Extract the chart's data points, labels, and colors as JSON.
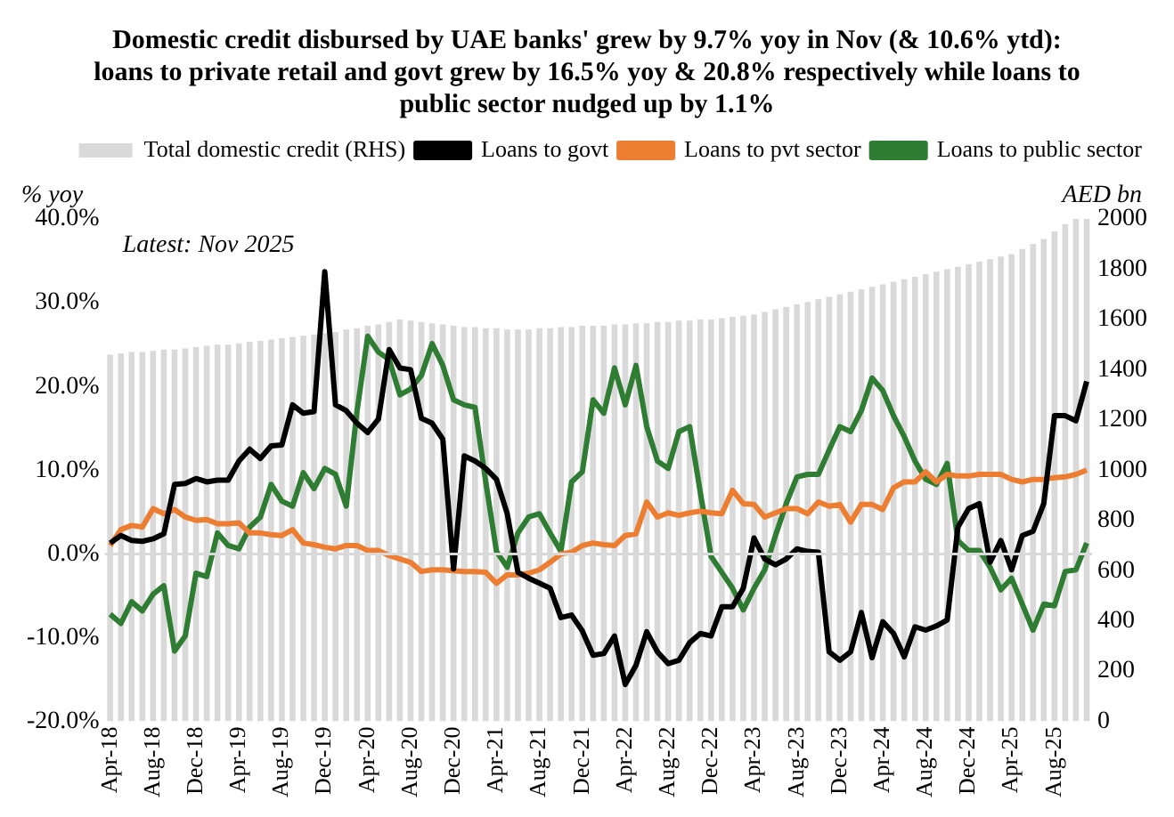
{
  "chart_data": {
    "type": "line",
    "title": "Domestic credit disbursed by UAE banks' grew by 9.7% yoy in Nov (& 10.6% ytd): loans to private retail and govt grew by 16.5% yoy & 20.8% respectively while loans to public sector nudged up by 1.1%",
    "ylabel": "% yoy",
    "y2label": "AED bn",
    "annotations": [
      "Latest: Nov 2025"
    ],
    "categories": [
      "Apr-18",
      null,
      null,
      null,
      "Aug-18",
      null,
      null,
      null,
      "Dec-18",
      null,
      null,
      null,
      "Apr-19",
      null,
      null,
      null,
      "Aug-19",
      null,
      null,
      null,
      "Dec-19",
      null,
      null,
      null,
      "Apr-20",
      null,
      null,
      null,
      "Aug-20",
      null,
      null,
      null,
      "Dec-20",
      null,
      null,
      null,
      "Apr-21",
      null,
      null,
      null,
      "Aug-21",
      null,
      null,
      null,
      "Dec-21",
      null,
      null,
      null,
      "Apr-22",
      null,
      null,
      null,
      "Aug-22",
      null,
      null,
      null,
      "Dec-22",
      null,
      null,
      null,
      "Apr-23",
      null,
      null,
      null,
      "Aug-23",
      null,
      null,
      null,
      "Dec-23",
      null,
      null,
      null,
      "Apr-24",
      null,
      null,
      null,
      "Aug-24",
      null,
      null,
      null,
      "Dec-24",
      null,
      null,
      null,
      "Apr-25",
      null,
      null,
      null,
      "Aug-25",
      null,
      null,
      null
    ],
    "series": [
      {
        "name": "Total domestic credit (RHS)",
        "type": "bar",
        "axis": "y2",
        "color": "#d9d9d9",
        "values": [
          1460,
          1465,
          1470,
          1470,
          1475,
          1480,
          1480,
          1485,
          1490,
          1495,
          1500,
          1500,
          1505,
          1510,
          1515,
          1520,
          1525,
          1530,
          1535,
          1540,
          1545,
          1550,
          1560,
          1565,
          1575,
          1580,
          1590,
          1600,
          1595,
          1590,
          1585,
          1580,
          1575,
          1570,
          1570,
          1565,
          1565,
          1560,
          1560,
          1560,
          1565,
          1565,
          1570,
          1570,
          1575,
          1575,
          1575,
          1580,
          1580,
          1585,
          1585,
          1590,
          1590,
          1595,
          1595,
          1600,
          1600,
          1605,
          1610,
          1615,
          1620,
          1630,
          1640,
          1650,
          1660,
          1670,
          1680,
          1690,
          1700,
          1710,
          1720,
          1730,
          1740,
          1750,
          1760,
          1770,
          1780,
          1790,
          1800,
          1810,
          1820,
          1830,
          1840,
          1850,
          1860,
          1880,
          1900,
          1920,
          1950,
          1980,
          2000,
          2000
        ]
      },
      {
        "name": "Loans to govt",
        "color": "#000000",
        "values": [
          1.3,
          2.2,
          1.6,
          1.5,
          1.8,
          2.4,
          8.3,
          8.4,
          9.0,
          8.6,
          8.8,
          8.8,
          11.1,
          12.5,
          11.4,
          12.9,
          13.0,
          17.8,
          16.8,
          17.0,
          33.7,
          17.8,
          17.1,
          15.6,
          14.5,
          16.1,
          24.4,
          22.2,
          22.0,
          16.2,
          15.6,
          13.7,
          -1.8,
          11.7,
          11.1,
          10.2,
          8.9,
          4.8,
          -2.2,
          -2.9,
          -3.5,
          -4.1,
          -7.6,
          -7.3,
          -9.2,
          -12.1,
          -11.9,
          -9.8,
          -15.6,
          -13.3,
          -9.3,
          -11.7,
          -13.1,
          -12.7,
          -10.6,
          -9.5,
          -9.8,
          -6.3,
          -6.3,
          -4.1,
          1.9,
          -0.6,
          -1.3,
          -0.6,
          0.6,
          0.3,
          0.2,
          -11.7,
          -12.7,
          -11.7,
          -7.0,
          -12.4,
          -8.1,
          -9.5,
          -12.3,
          -8.7,
          -9.1,
          -8.6,
          -7.9,
          3.2,
          5.4,
          6.0,
          -1.0,
          1.6,
          -1.9,
          2.2,
          2.7,
          6.0,
          16.5,
          16.5,
          15.9,
          20.6
        ]
      },
      {
        "name": "Loans to pvt sector",
        "color": "#ed7d31",
        "values": [
          1.0,
          2.9,
          3.4,
          3.2,
          5.4,
          4.8,
          5.3,
          4.4,
          4.0,
          4.1,
          3.6,
          3.6,
          3.7,
          2.5,
          2.5,
          2.3,
          2.2,
          2.9,
          1.3,
          1.1,
          0.8,
          0.6,
          1.0,
          1.0,
          0.4,
          0.4,
          -0.2,
          -0.6,
          -1.0,
          -2.1,
          -1.9,
          -1.9,
          -2.0,
          -2.1,
          -2.1,
          -2.2,
          -3.5,
          -2.5,
          -2.5,
          -2.3,
          -1.9,
          -1.0,
          0.0,
          0.2,
          1.0,
          1.3,
          1.1,
          1.0,
          2.2,
          2.4,
          6.2,
          4.4,
          4.9,
          4.6,
          4.9,
          5.1,
          4.9,
          4.8,
          7.6,
          6.0,
          5.9,
          4.4,
          4.9,
          5.4,
          5.4,
          4.8,
          6.2,
          5.7,
          5.9,
          3.8,
          5.9,
          5.9,
          5.3,
          7.9,
          8.6,
          8.6,
          9.8,
          8.6,
          9.5,
          9.3,
          9.3,
          9.5,
          9.5,
          9.5,
          8.9,
          8.6,
          8.9,
          8.9,
          9.1,
          9.2,
          9.5,
          10.0
        ]
      },
      {
        "name": "Loans to public sector",
        "color": "#2e7d32",
        "values": [
          -7.2,
          -8.3,
          -5.7,
          -6.8,
          -4.8,
          -3.8,
          -11.6,
          -9.8,
          -2.3,
          -2.7,
          2.5,
          1.0,
          0.6,
          3.2,
          4.4,
          8.3,
          6.3,
          5.7,
          9.7,
          7.8,
          10.2,
          9.5,
          5.7,
          17.0,
          26.0,
          24.1,
          23.2,
          19.0,
          19.7,
          21.3,
          25.1,
          22.5,
          18.4,
          17.8,
          17.5,
          8.6,
          0.3,
          -1.6,
          2.5,
          4.4,
          4.8,
          2.5,
          0.3,
          8.6,
          9.8,
          18.4,
          16.8,
          22.2,
          17.8,
          22.5,
          15.2,
          11.1,
          10.2,
          14.6,
          15.2,
          7.3,
          -0.3,
          -2.2,
          -4.1,
          -6.7,
          -4.1,
          -1.9,
          2.2,
          6.0,
          9.2,
          9.5,
          9.5,
          12.4,
          15.2,
          14.6,
          17.1,
          21.0,
          19.5,
          16.5,
          14.0,
          11.1,
          8.9,
          8.3,
          10.8,
          1.6,
          0.4,
          0.4,
          -1.6,
          -4.3,
          -2.9,
          -6.0,
          -9.1,
          -6.0,
          -6.2,
          -2.1,
          -1.9,
          1.3
        ]
      }
    ],
    "ylim": [
      -20,
      40
    ],
    "yticks": [
      {
        "value": -20,
        "label": "-20.0%"
      },
      {
        "value": -10,
        "label": "-10.0%"
      },
      {
        "value": 0,
        "label": "0.0%"
      },
      {
        "value": 10,
        "label": "10.0%"
      },
      {
        "value": 20,
        "label": "20.0%"
      },
      {
        "value": 30,
        "label": "30.0%"
      },
      {
        "value": 40,
        "label": "40.0%"
      }
    ],
    "y2lim": [
      0,
      2000
    ],
    "y2ticks": [
      0,
      200,
      400,
      600,
      800,
      1000,
      1200,
      1400,
      1600,
      1800,
      2000
    ],
    "ref_lines": [
      {
        "axis": "y",
        "value": 0,
        "color": "#d9d9d9"
      }
    ],
    "legend": "top right",
    "marker": "none",
    "grid": false
  }
}
